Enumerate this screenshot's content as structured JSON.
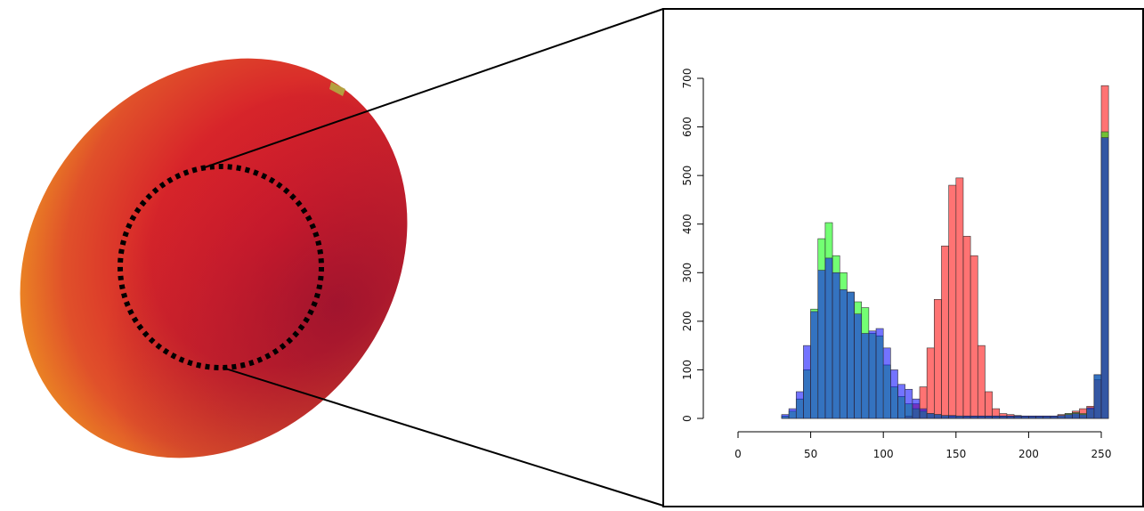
{
  "chart_data": {
    "type": "histogram",
    "bins": [
      0,
      5,
      10,
      15,
      20,
      25,
      30,
      35,
      40,
      45,
      50,
      55,
      60,
      65,
      70,
      75,
      80,
      85,
      90,
      95,
      100,
      105,
      110,
      115,
      120,
      125,
      130,
      135,
      140,
      145,
      150,
      155,
      160,
      165,
      170,
      175,
      180,
      185,
      190,
      195,
      200,
      205,
      210,
      215,
      220,
      225,
      230,
      235,
      240,
      245,
      250,
      255
    ],
    "series": [
      {
        "color": "#ff0000",
        "values": [
          0,
          0,
          0,
          0,
          0,
          0,
          0,
          0,
          0,
          0,
          0,
          0,
          0,
          0,
          0,
          0,
          0,
          0,
          0,
          0,
          0,
          0,
          0,
          5,
          30,
          65,
          145,
          245,
          355,
          480,
          495,
          375,
          335,
          150,
          55,
          20,
          10,
          8,
          6,
          5,
          5,
          5,
          5,
          5,
          8,
          10,
          15,
          20,
          25,
          80,
          685
        ]
      },
      {
        "color": "#00ff00",
        "values": [
          0,
          0,
          0,
          0,
          0,
          0,
          5,
          15,
          40,
          100,
          225,
          370,
          403,
          335,
          300,
          260,
          240,
          228,
          175,
          170,
          110,
          65,
          45,
          30,
          20,
          15,
          10,
          8,
          6,
          5,
          5,
          4,
          4,
          4,
          4,
          4,
          4,
          4,
          4,
          4,
          4,
          4,
          4,
          4,
          6,
          10,
          12,
          10,
          20,
          90,
          590
        ]
      },
      {
        "color": "#0000ff",
        "values": [
          0,
          0,
          0,
          0,
          0,
          0,
          8,
          20,
          55,
          150,
          220,
          305,
          330,
          300,
          265,
          260,
          215,
          175,
          180,
          185,
          145,
          100,
          70,
          60,
          40,
          20,
          10,
          8,
          6,
          6,
          5,
          5,
          5,
          5,
          5,
          5,
          5,
          5,
          5,
          5,
          5,
          5,
          5,
          5,
          6,
          8,
          10,
          8,
          22,
          90,
          578
        ]
      }
    ],
    "xlim": [
      0,
      255
    ],
    "xticks": [
      0,
      50,
      100,
      150,
      200,
      250
    ],
    "ylim": [
      0,
      700
    ],
    "yticks": [
      0,
      100,
      200,
      300,
      400,
      500,
      600,
      700
    ]
  }
}
